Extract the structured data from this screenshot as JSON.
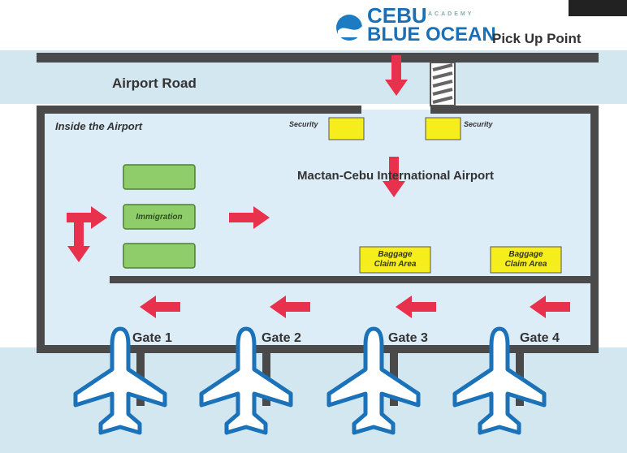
{
  "header": {
    "logo_top": "CEBU",
    "logo_small": "ACADEMY",
    "logo_main": "BLUE OCEAN",
    "pickup": "Pick Up Point"
  },
  "road": "Airport Road",
  "inside": "Inside the Airport",
  "airport_name": "Mactan-Cebu International Airport",
  "immigration": "Immigration",
  "security": [
    "Security",
    "Security"
  ],
  "baggage": [
    "Baggage Claim Area",
    "Baggage Claim Area"
  ],
  "gates": [
    "Gate 1",
    "Gate 2",
    "Gate 3",
    "Gate 4"
  ]
}
